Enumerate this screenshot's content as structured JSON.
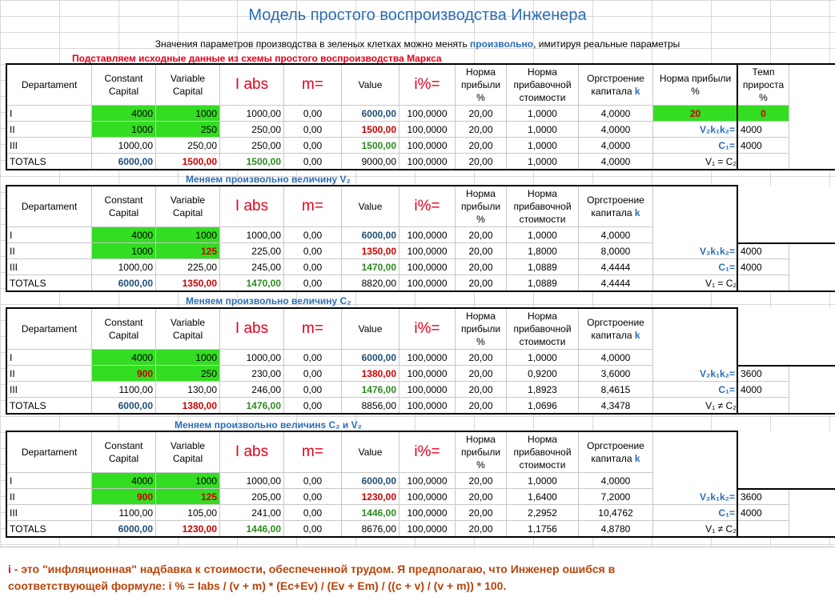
{
  "title": "Модель простого воспроизводства Инженера",
  "subtitle": {
    "before": "Значения параметров производства в зеленых клетках можно менять ",
    "highlight": "произвольно",
    "after": ", имитируя реальные параметры"
  },
  "headers": {
    "departament": "Departament",
    "constant": "Constant Capital",
    "variable": "Variable Capital",
    "iabs": "I abs",
    "m": "m=",
    "value": "Value",
    "ipct": "i%=",
    "profit": "Норма прибыли %",
    "surplus": "Норма прибавочной стоимости",
    "orgstr": "Оргстроение капитала",
    "orgstr_k": "k",
    "profit_small": "Норма прибыли %",
    "growth": "Темп прироста %"
  },
  "sections": [
    {
      "title": "Подставляем исходные данные из схемы простого воспроизводства Маркса",
      "rows": [
        {
          "dept": "I",
          "c": "4000",
          "v": "1000",
          "iabs": "1000,00",
          "m": "0,00",
          "value": "6000,00",
          "ipct": "100,0000",
          "profit": "20,00",
          "surplus": "1,0000",
          "k": "4,0000"
        },
        {
          "dept": "II",
          "c": "1000",
          "v": "250",
          "iabs": "250,00",
          "m": "0,00",
          "value": "1500,00",
          "ipct": "100,0000",
          "profit": "20,00",
          "surplus": "1,0000",
          "k": "4,0000"
        },
        {
          "dept": "III",
          "c": "1000,00",
          "v": "250,00",
          "iabs": "250,00",
          "m": "0,00",
          "value": "1500,00",
          "ipct": "100,0000",
          "profit": "20,00",
          "surplus": "1,0000",
          "k": "4,0000"
        },
        {
          "dept": "TOTALS",
          "c": "6000,00",
          "v": "1500,00",
          "iabs": "1500,00",
          "m": "0,00",
          "value": "9000,00",
          "ipct": "100,0000",
          "profit": "20,00",
          "surplus": "1,0000",
          "k": "4,0000"
        }
      ],
      "side": {
        "profit": "20",
        "growth": "0",
        "v2k1k2_label": "V₂k₁k₂=",
        "v2k1k2": "4000",
        "c1_label": "C₁=",
        "c1": "4000",
        "eq": "V₁ = C₂"
      }
    },
    {
      "title": "Меняем произвольно величину V₂",
      "rows": [
        {
          "dept": "I",
          "c": "4000",
          "v": "1000",
          "iabs": "1000,00",
          "m": "0,00",
          "value": "6000,00",
          "ipct": "100,0000",
          "profit": "20,00",
          "surplus": "1,0000",
          "k": "4,0000"
        },
        {
          "dept": "II",
          "c": "1000",
          "v": "125",
          "iabs": "225,00",
          "m": "0,00",
          "value": "1350,00",
          "ipct": "100,0000",
          "profit": "20,00",
          "surplus": "1,8000",
          "k": "8,0000"
        },
        {
          "dept": "III",
          "c": "1000,00",
          "v": "225,00",
          "iabs": "245,00",
          "m": "0,00",
          "value": "1470,00",
          "ipct": "100,0000",
          "profit": "20,00",
          "surplus": "1,0889",
          "k": "4,4444"
        },
        {
          "dept": "TOTALS",
          "c": "6000,00",
          "v": "1350,00",
          "iabs": "1470,00",
          "m": "0,00",
          "value": "8820,00",
          "ipct": "100,0000",
          "profit": "20,00",
          "surplus": "1,0889",
          "k": "4,4444"
        }
      ],
      "side": {
        "v2k1k2_label": "V₂k₁k₂=",
        "v2k1k2": "4000",
        "c1_label": "C₁=",
        "c1": "4000",
        "eq": "V₁ = C₂"
      }
    },
    {
      "title": "Меняем произвольно величину C₂",
      "rows": [
        {
          "dept": "I",
          "c": "4000",
          "v": "1000",
          "iabs": "1000,00",
          "m": "0,00",
          "value": "6000,00",
          "ipct": "100,0000",
          "profit": "20,00",
          "surplus": "1,0000",
          "k": "4,0000"
        },
        {
          "dept": "II",
          "c": "900",
          "v": "250",
          "iabs": "230,00",
          "m": "0,00",
          "value": "1380,00",
          "ipct": "100,0000",
          "profit": "20,00",
          "surplus": "0,9200",
          "k": "3,6000"
        },
        {
          "dept": "III",
          "c": "1100,00",
          "v": "130,00",
          "iabs": "246,00",
          "m": "0,00",
          "value": "1476,00",
          "ipct": "100,0000",
          "profit": "20,00",
          "surplus": "1,8923",
          "k": "8,4615"
        },
        {
          "dept": "TOTALS",
          "c": "6000,00",
          "v": "1380,00",
          "iabs": "1476,00",
          "m": "0,00",
          "value": "8856,00",
          "ipct": "100,0000",
          "profit": "20,00",
          "surplus": "1,0696",
          "k": "4,3478"
        }
      ],
      "side": {
        "v2k1k2_label": "V₂k₁k₂=",
        "v2k1k2": "3600",
        "c1_label": "C₁=",
        "c1": "4000",
        "eq": "V₁ ≠ C₂"
      }
    },
    {
      "title": "Меняем произвольно величинs C₂ и V₂",
      "rows": [
        {
          "dept": "I",
          "c": "4000",
          "v": "1000",
          "iabs": "1000,00",
          "m": "0,00",
          "value": "6000,00",
          "ipct": "100,0000",
          "profit": "20,00",
          "surplus": "1,0000",
          "k": "4,0000"
        },
        {
          "dept": "II",
          "c": "900",
          "v": "125",
          "iabs": "205,00",
          "m": "0,00",
          "value": "1230,00",
          "ipct": "100,0000",
          "profit": "20,00",
          "surplus": "1,6400",
          "k": "7,2000"
        },
        {
          "dept": "III",
          "c": "1100,00",
          "v": "105,00",
          "iabs": "241,00",
          "m": "0,00",
          "value": "1446,00",
          "ipct": "100,0000",
          "profit": "20,00",
          "surplus": "2,2952",
          "k": "10,4762"
        },
        {
          "dept": "TOTALS",
          "c": "6000,00",
          "v": "1230,00",
          "iabs": "1446,00",
          "m": "0,00",
          "value": "8676,00",
          "ipct": "100,0000",
          "profit": "20,00",
          "surplus": "1,1756",
          "k": "4,8780"
        }
      ],
      "side": {
        "v2k1k2_label": "V₂k₁k₂=",
        "v2k1k2": "3600",
        "c1_label": "C₁=",
        "c1": "4000",
        "eq": "V₁ ≠ C₂"
      }
    }
  ],
  "footnote": {
    "i": "i",
    "line1": " - это \"инфляционная\" надбавка к стоимости, обеспеченной трудом. Я предполагаю, что Инженер ошибся в",
    "line2": "соответствующей формуле: i % = Iabs / (v + m) * (Ec+Ev) / (Ev + Em) / ((c + v) / (v + m)) * 100."
  },
  "colors": {
    "green_cell": "#33dd22",
    "title_blue": "#2a6db8",
    "red": "#e3001b",
    "navy": "#1f4e79",
    "green_text": "#2c8a1e",
    "footnote": "#b8440a"
  }
}
